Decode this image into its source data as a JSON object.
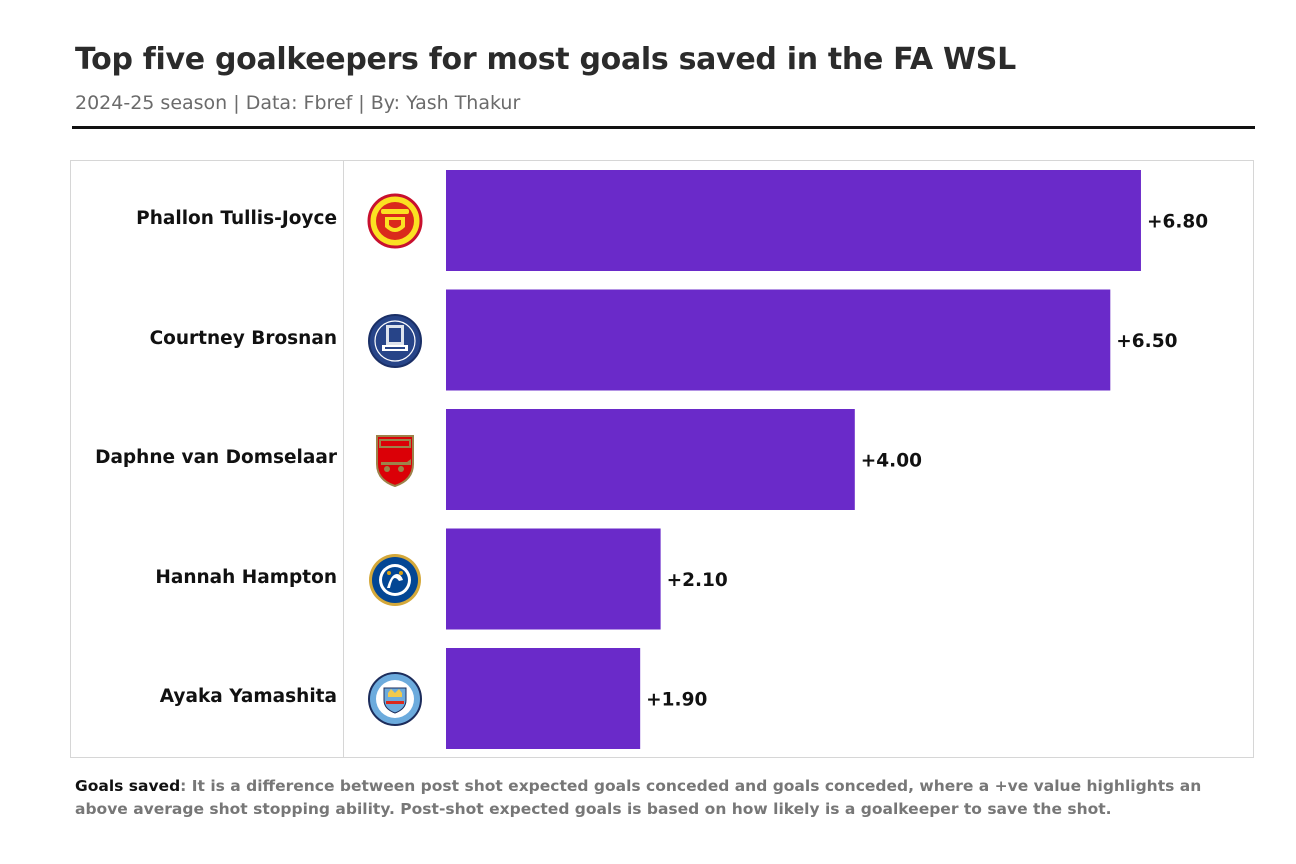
{
  "header": {
    "title": "Top five goalkeepers for most goals saved in the FA WSL",
    "subtitle": "2024-25 season | Data: Fbref | By: Yash Thakur"
  },
  "footnote": {
    "lead": "Goals saved",
    "text": ": It is a difference between post shot expected goals conceded and goals conceded, where a +ve value highlights an above average shot stopping ability. Post-shot expected goals is based on how likely is a goalkeeper to save the shot."
  },
  "colors": {
    "bar": "#6a2ac9",
    "text": "#111111"
  },
  "rows": [
    {
      "name": "Phallon Tullis-Joyce",
      "club_icon": "manchester-united-crest-icon",
      "club_text": "MANCHESTER UNITED",
      "value_label": "+6.80"
    },
    {
      "name": "Courtney Brosnan",
      "club_icon": "everton-crest-icon",
      "club_text": "Everton",
      "value_label": "+6.50"
    },
    {
      "name": "Daphne van Domselaar",
      "club_icon": "arsenal-crest-icon",
      "club_text": "Arsenal",
      "value_label": "+4.00"
    },
    {
      "name": "Hannah Hampton",
      "club_icon": "chelsea-crest-icon",
      "club_text": "CHELSEA",
      "value_label": "+2.10"
    },
    {
      "name": "Ayaka Yamashita",
      "club_icon": "manchester-city-crest-icon",
      "club_text": "MANCHESTER CITY",
      "value_label": "+1.90"
    }
  ],
  "chart_data": {
    "type": "bar",
    "orientation": "horizontal",
    "title": "Top five goalkeepers for most goals saved in the FA WSL",
    "subtitle": "2024-25 season | Data: Fbref | By: Yash Thakur",
    "categories": [
      "Phallon Tullis-Joyce",
      "Courtney Brosnan",
      "Daphne van Domselaar",
      "Hannah Hampton",
      "Ayaka Yamashita"
    ],
    "values": [
      6.8,
      6.5,
      4.0,
      2.1,
      1.9
    ],
    "data_labels": [
      "+6.80",
      "+6.50",
      "+4.00",
      "+2.10",
      "+1.90"
    ],
    "xlim": [
      0,
      7.4
    ],
    "grid": false,
    "legend": "none"
  }
}
